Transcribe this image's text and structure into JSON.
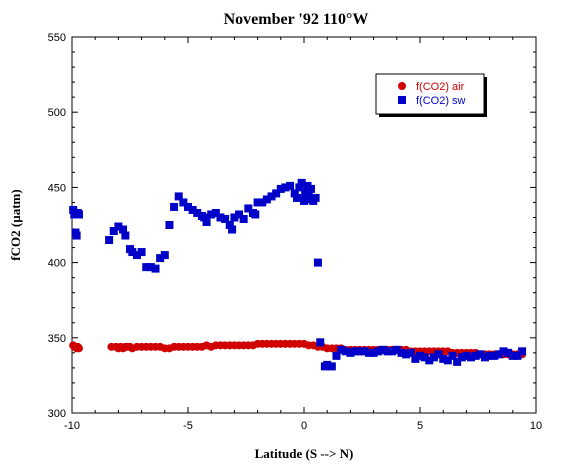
{
  "chart_data": {
    "type": "scatter",
    "title": "November '92 110°W",
    "xlabel": "Latitude (S --> N)",
    "ylabel": "fCO2 (µatm)",
    "xlim": [
      -10,
      10
    ],
    "ylim": [
      300,
      550
    ],
    "xticks": [
      -10,
      -5,
      0,
      5,
      10
    ],
    "yticks": [
      300,
      350,
      400,
      450,
      500,
      550
    ],
    "grid": false,
    "legend_position": "top-right",
    "series": [
      {
        "name": "f(CO2) air",
        "marker": "circle",
        "color": "#d00000",
        "x": [
          -9.95,
          -9.9,
          -9.85,
          -9.8,
          -9.75,
          -9.7,
          -8.3,
          -8.1,
          -8.0,
          -7.9,
          -7.8,
          -7.7,
          -7.6,
          -7.5,
          -7.4,
          -7.2,
          -7.0,
          -6.8,
          -6.6,
          -6.4,
          -6.2,
          -6.0,
          -5.8,
          -5.6,
          -5.4,
          -5.2,
          -5.0,
          -4.8,
          -4.6,
          -4.4,
          -4.2,
          -4.0,
          -3.8,
          -3.6,
          -3.4,
          -3.2,
          -3.0,
          -2.8,
          -2.6,
          -2.4,
          -2.2,
          -2.0,
          -1.8,
          -1.6,
          -1.4,
          -1.2,
          -1.0,
          -0.8,
          -0.6,
          -0.4,
          -0.2,
          0.0,
          0.2,
          0.4,
          0.6,
          0.8,
          1.0,
          1.2,
          1.4,
          1.6,
          1.8,
          2.0,
          2.2,
          2.4,
          2.6,
          2.8,
          3.0,
          3.2,
          3.4,
          3.6,
          3.8,
          4.0,
          4.2,
          4.4,
          4.6,
          4.8,
          5.0,
          5.2,
          5.4,
          5.6,
          5.8,
          6.0,
          6.2,
          6.4,
          6.6,
          6.8,
          7.0,
          7.2,
          7.4,
          7.6,
          7.8,
          8.0,
          8.2,
          8.4,
          8.6,
          8.8,
          9.0,
          9.2,
          9.4
        ],
        "y": [
          345,
          344,
          344,
          343,
          344,
          343,
          344,
          344,
          343,
          344,
          343,
          344,
          344,
          344,
          343,
          344,
          344,
          344,
          344,
          344,
          344,
          343,
          343,
          344,
          344,
          344,
          344,
          344,
          344,
          344,
          345,
          344,
          345,
          345,
          345,
          345,
          345,
          345,
          345,
          345,
          345,
          346,
          346,
          346,
          346,
          346,
          346,
          346,
          346,
          346,
          346,
          346,
          345,
          345,
          344,
          344,
          343,
          343,
          343,
          343,
          342,
          342,
          342,
          342,
          342,
          342,
          342,
          342,
          342,
          342,
          342,
          342,
          342,
          342,
          341,
          341,
          341,
          341,
          341,
          341,
          341,
          341,
          341,
          340,
          340,
          340,
          340,
          340,
          340,
          339,
          339,
          339,
          339,
          339,
          339,
          339,
          339,
          339,
          339
        ]
      },
      {
        "name": "f(CO2) sw",
        "marker": "square",
        "color": "#0000c8",
        "x": [
          -9.95,
          -9.9,
          -9.85,
          -9.8,
          -9.75,
          -9.7,
          -8.4,
          -8.2,
          -8.0,
          -7.8,
          -7.7,
          -7.5,
          -7.4,
          -7.2,
          -7.0,
          -6.8,
          -6.6,
          -6.4,
          -6.2,
          -6.0,
          -5.8,
          -5.6,
          -5.4,
          -5.2,
          -5.0,
          -4.8,
          -4.6,
          -4.4,
          -4.3,
          -4.2,
          -4.0,
          -3.8,
          -3.6,
          -3.4,
          -3.2,
          -3.1,
          -3.0,
          -2.8,
          -2.6,
          -2.4,
          -2.2,
          -2.1,
          -2.0,
          -1.8,
          -1.6,
          -1.4,
          -1.2,
          -1.0,
          -0.8,
          -0.6,
          -0.4,
          -0.3,
          -0.2,
          -0.1,
          0.0,
          0.05,
          0.1,
          0.15,
          0.2,
          0.3,
          0.4,
          0.5,
          0.6,
          0.7,
          0.9,
          1.0,
          1.2,
          1.4,
          1.6,
          1.8,
          2.0,
          2.2,
          2.4,
          2.6,
          2.8,
          3.0,
          3.2,
          3.4,
          3.6,
          3.8,
          4.0,
          4.2,
          4.4,
          4.6,
          4.8,
          5.0,
          5.2,
          5.4,
          5.6,
          5.8,
          6.0,
          6.2,
          6.4,
          6.6,
          6.8,
          7.0,
          7.2,
          7.4,
          7.6,
          7.8,
          8.0,
          8.2,
          8.4,
          8.6,
          8.8,
          9.0,
          9.2,
          9.4
        ],
        "y": [
          435,
          432,
          420,
          418,
          433,
          432,
          415,
          421,
          424,
          422,
          418,
          409,
          407,
          405,
          407,
          397,
          397,
          396,
          403,
          405,
          425,
          437,
          444,
          440,
          437,
          435,
          433,
          431,
          430,
          427,
          432,
          433,
          430,
          429,
          425,
          422,
          430,
          432,
          429,
          436,
          433,
          432,
          440,
          440,
          442,
          444,
          446,
          449,
          450,
          451,
          446,
          443,
          450,
          453,
          441,
          446,
          442,
          451,
          444,
          449,
          441,
          443,
          400,
          347,
          331,
          332,
          331,
          338,
          342,
          341,
          340,
          341,
          341,
          341,
          340,
          340,
          341,
          342,
          341,
          341,
          342,
          340,
          339,
          340,
          336,
          338,
          337,
          335,
          337,
          339,
          336,
          335,
          338,
          334,
          337,
          338,
          337,
          338,
          339,
          337,
          338,
          338,
          339,
          341,
          340,
          338,
          338,
          341
        ]
      }
    ]
  }
}
